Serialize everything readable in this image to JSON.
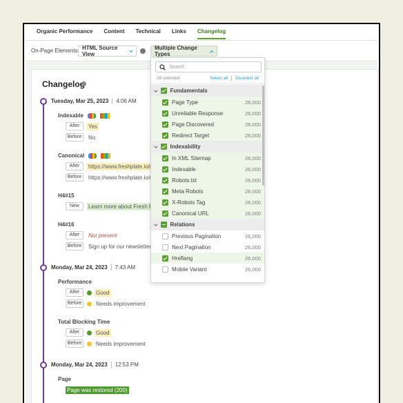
{
  "tabs": [
    "Organic Performance",
    "Content",
    "Technical",
    "Links",
    "Changelog"
  ],
  "active_tab": 4,
  "toolbar": {
    "label": "On-Page Elements",
    "view": "HTML Source View",
    "change_types": "Multiple Change Types"
  },
  "changelog": {
    "title": "Changelog",
    "entries": [
      {
        "date": "Tuesday, Mar 25, 2023",
        "time": "4:06 AM",
        "changes": [
          {
            "field": "Indexable",
            "search_engines": [
              "google",
              "bing"
            ],
            "rows": [
              {
                "tag": "After",
                "value": "Yes",
                "highlight": "#fbf0bd"
              },
              {
                "tag": "Before",
                "value": "No"
              }
            ]
          },
          {
            "field": "Canonical",
            "search_engines": [
              "google",
              "bing"
            ],
            "rows": [
              {
                "tag": "After",
                "value": "https://www.freshplate.io/re",
                "highlight": "#fbf0bd"
              },
              {
                "tag": "Before",
                "value": "https://www.freshplate.io/re"
              }
            ]
          },
          {
            "field": "H4#15",
            "rows": [
              {
                "tag": "New",
                "value": "Learn more about Fresh Pla",
                "highlight": "#dcefd0"
              }
            ]
          },
          {
            "field": "H4#16",
            "rows": [
              {
                "tag": "After",
                "value": "Not present",
                "text_color": "#c0504d",
                "italic": true
              },
              {
                "tag": "Before",
                "value": "Sign up for our newsletter"
              }
            ]
          }
        ]
      },
      {
        "date": "Monday, Mar 24, 2023",
        "time": "7:43 AM",
        "changes": [
          {
            "field": "Performance",
            "rows": [
              {
                "tag": "After",
                "value": "Good",
                "dot": "#4e9a23",
                "highlight": "#fbf0bd"
              },
              {
                "tag": "Before",
                "value": "Needs improvement",
                "dot": "#f4c430"
              }
            ]
          },
          {
            "field": "Total Blocking Time",
            "rows": [
              {
                "tag": "After",
                "value": "Good",
                "dot": "#4e9a23",
                "highlight": "#fbf0bd"
              },
              {
                "tag": "Before",
                "value": "Needs improvement",
                "dot": "#f4c430"
              }
            ]
          }
        ]
      },
      {
        "date": "Monday, Mar 24, 2023",
        "time": "12:53 PM",
        "changes": [
          {
            "field": "Page",
            "rows": [
              {
                "value": "Page was restored (200)",
                "highlight": "#4f9a2e",
                "text_color": "#ffffff"
              }
            ]
          }
        ]
      }
    ]
  },
  "dropdown": {
    "search_placeholder": "Search",
    "selected": "28 selected",
    "select_all": "Select all",
    "deselect_all": "Deselect all",
    "groups": [
      {
        "name": "Fundamentals",
        "state": "checked",
        "items": [
          {
            "name": "Page Type",
            "count": "26,000",
            "checked": true
          },
          {
            "name": "Unreliable Response",
            "count": "26,000",
            "checked": true
          },
          {
            "name": "Page Discovered",
            "count": "26,000",
            "checked": true
          },
          {
            "name": "Redirect Target",
            "count": "26,000",
            "checked": true
          }
        ]
      },
      {
        "name": "Indexability",
        "state": "checked",
        "items": [
          {
            "name": "In XML Sitemap",
            "count": "26,000",
            "checked": true
          },
          {
            "name": "Indexable",
            "count": "26,000",
            "checked": true
          },
          {
            "name": "Robots.txt",
            "count": "26,000",
            "checked": true
          },
          {
            "name": "Meta Robots",
            "count": "26,000",
            "checked": true
          },
          {
            "name": "X-Robots Tag",
            "count": "26,000",
            "checked": true
          },
          {
            "name": "Canonical URL",
            "count": "26,000",
            "checked": true
          }
        ]
      },
      {
        "name": "Relations",
        "state": "partial",
        "items": [
          {
            "name": "Previous Pagination",
            "count": "26,000",
            "checked": false
          },
          {
            "name": "Next Pagination",
            "count": "26,000",
            "checked": false
          },
          {
            "name": "Hreflang",
            "count": "26,000",
            "checked": true
          },
          {
            "name": "Mobile Variant",
            "count": "26,000",
            "checked": false
          }
        ]
      }
    ]
  }
}
